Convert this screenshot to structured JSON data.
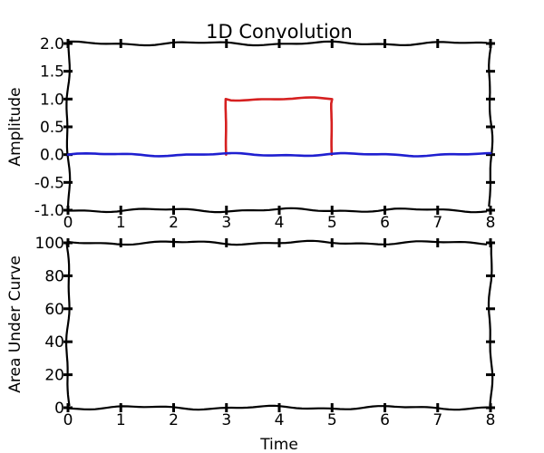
{
  "chart_data": [
    {
      "type": "line",
      "title": "1D Convolution",
      "xlabel": "",
      "ylabel": "Amplitude",
      "xlim": [
        0,
        8
      ],
      "ylim": [
        -1.0,
        2.0
      ],
      "x_ticks": [
        "0",
        "1",
        "2",
        "3",
        "4",
        "5",
        "6",
        "7",
        "8"
      ],
      "y_ticks": [
        "-1.0",
        "-0.5",
        "0.0",
        "0.5",
        "1.0",
        "1.5",
        "2.0"
      ],
      "grid": false,
      "style": "xkcd",
      "series": [
        {
          "color": "#d62020",
          "x": [
            3.0,
            3.0,
            3.5,
            4.0,
            4.5,
            5.0,
            5.0
          ],
          "y": [
            0.0,
            1.0,
            1.0,
            1.0,
            1.0,
            1.0,
            0.0
          ]
        },
        {
          "color": "#1f1fd0",
          "x": [
            0.0,
            8.0
          ],
          "y": [
            0.0,
            0.0
          ]
        }
      ]
    },
    {
      "type": "line",
      "title": "",
      "xlabel": "Time",
      "ylabel": "Area Under Curve",
      "xlim": [
        0,
        8
      ],
      "ylim": [
        0,
        100
      ],
      "x_ticks": [
        "0",
        "1",
        "2",
        "3",
        "4",
        "5",
        "6",
        "7",
        "8"
      ],
      "y_ticks": [
        "0",
        "20",
        "40",
        "60",
        "80",
        "100"
      ],
      "grid": false,
      "style": "xkcd",
      "series": []
    }
  ]
}
